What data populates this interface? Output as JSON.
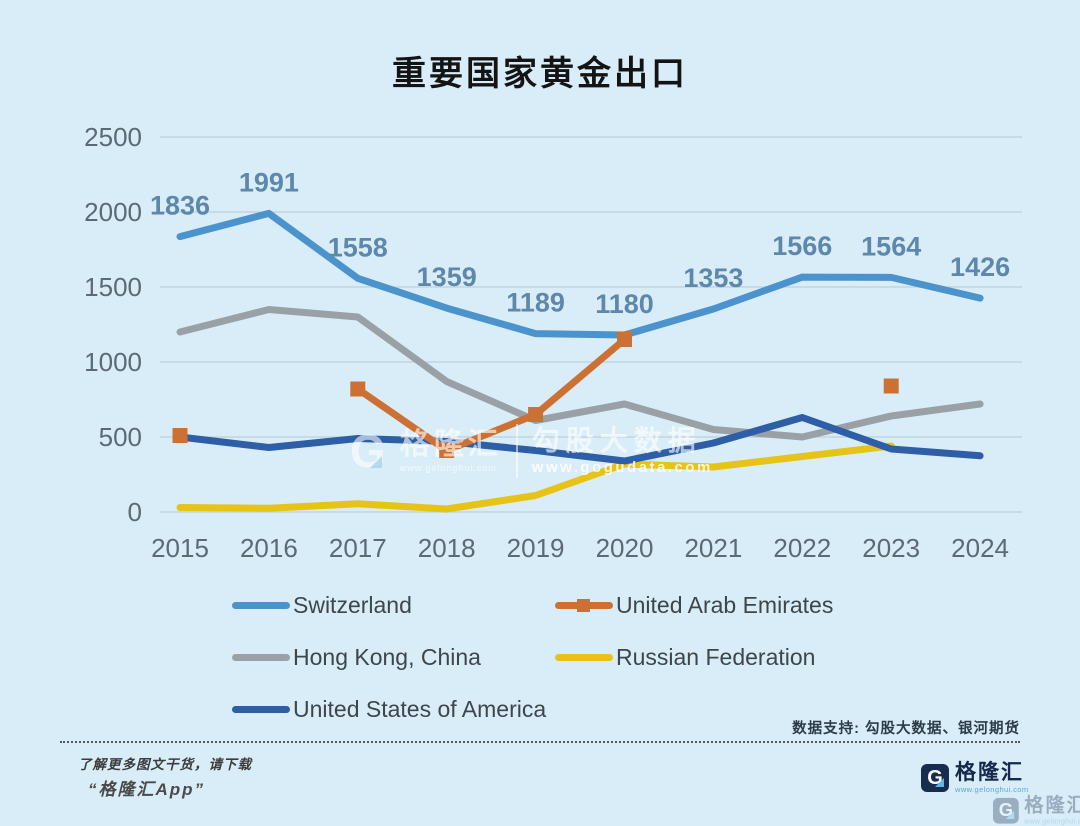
{
  "title": "重要国家黄金出口",
  "chart_data": {
    "type": "line",
    "title": "重要国家黄金出口",
    "categories": [
      "2015",
      "2016",
      "2017",
      "2018",
      "2019",
      "2020",
      "2021",
      "2022",
      "2023",
      "2024"
    ],
    "ylim": [
      0,
      2500
    ],
    "yticks": [
      0,
      500,
      1000,
      1500,
      2000,
      2500
    ],
    "grid": true,
    "legend_position": "bottom",
    "style": {
      "background": "#d9edf8",
      "grid_color": "#c3d4de",
      "axis_color": "#5c6a74",
      "label_color": "#5d88ac"
    },
    "series": [
      {
        "id": "switzerland",
        "name": "Switzerland",
        "color": "#4b93cc",
        "marker": "none",
        "show_labels": true,
        "z": 0,
        "values": [
          1836,
          1991,
          1558,
          1359,
          1189,
          1180,
          1353,
          1566,
          1564,
          1426
        ]
      },
      {
        "id": "uae",
        "name": "United Arab Emirates",
        "color": "#cc7133",
        "marker": "square",
        "show_labels": false,
        "z": 4,
        "values": [
          510,
          null,
          820,
          410,
          650,
          1150,
          null,
          null,
          840,
          null
        ]
      },
      {
        "id": "hong-kong",
        "name": "Hong Kong, China",
        "color": "#9aa1a6",
        "marker": "none",
        "show_labels": false,
        "z": 1,
        "values": [
          1200,
          1350,
          1300,
          870,
          610,
          720,
          550,
          500,
          640,
          720
        ]
      },
      {
        "id": "russia",
        "name": "Russian Federation",
        "color": "#e5c417",
        "marker": "none",
        "show_labels": false,
        "z": 2,
        "values": [
          30,
          25,
          55,
          20,
          110,
          320,
          300,
          370,
          440,
          null
        ]
      },
      {
        "id": "usa",
        "name": "United States of America",
        "color": "#2e5ea6",
        "marker": "none",
        "show_labels": false,
        "z": 3,
        "values": [
          500,
          430,
          490,
          470,
          410,
          340,
          460,
          630,
          420,
          375
        ]
      }
    ]
  },
  "watermark_center": {
    "brand_g": "G",
    "brand": "格隆汇",
    "brand_url": "www.gelonghui.com",
    "partner": "勾股大数据",
    "partner_url": "www.gogudata.com"
  },
  "footer": {
    "data_support": "数据支持: 勾股大数据、银河期货",
    "promo_line1": "了解更多图文干货，请下载",
    "promo_line2": "“格隆汇App”",
    "brand_g": "G",
    "brand": "格隆汇",
    "brand_url": "www.gelonghui.com"
  }
}
